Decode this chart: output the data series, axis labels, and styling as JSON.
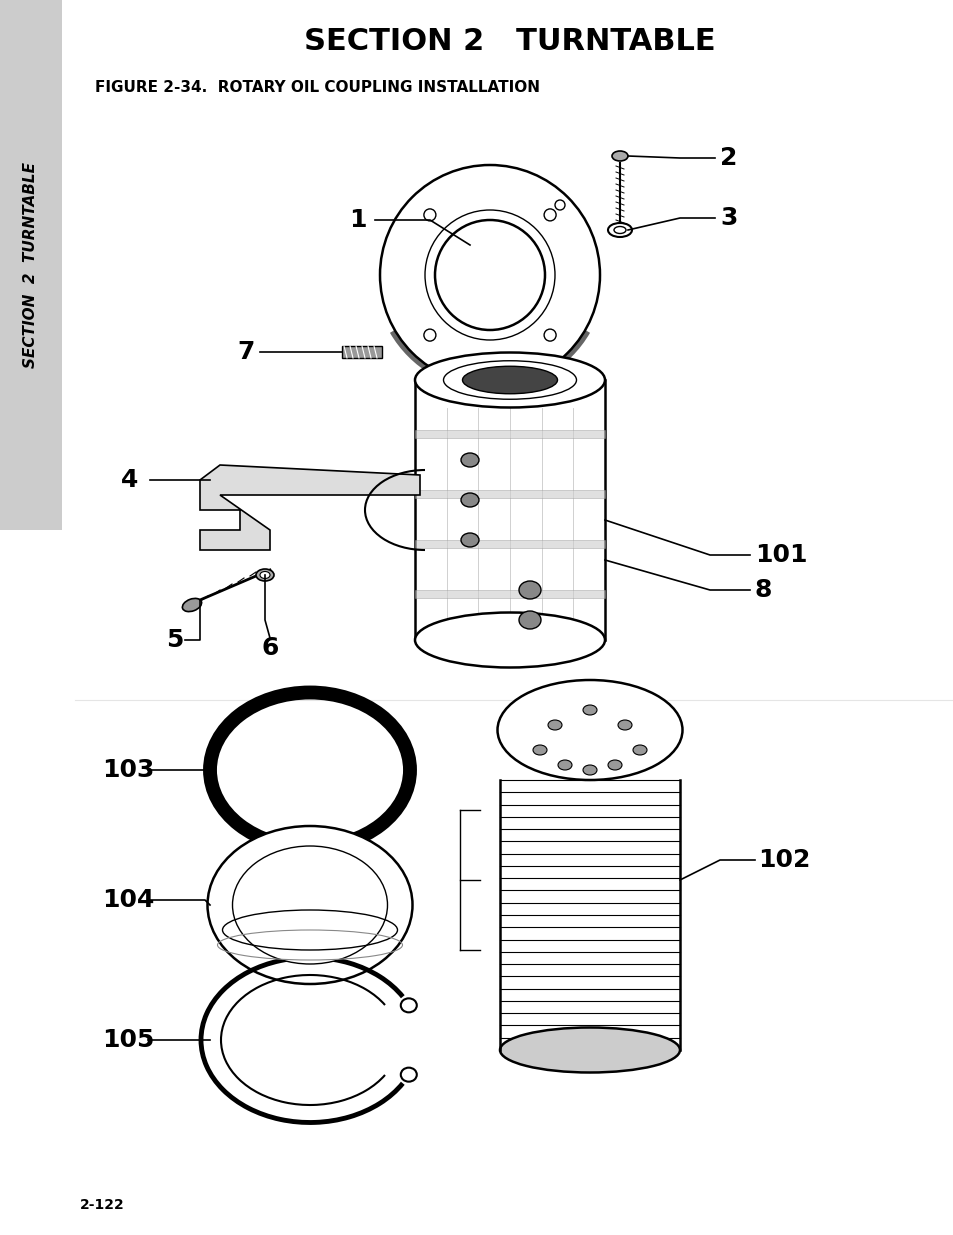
{
  "title": "SECTION 2   TURNTABLE",
  "figure_label": "FIGURE 2-34.  ROTARY OIL COUPLING INSTALLATION",
  "page_number": "2-122",
  "sidebar_color": "#cccccc",
  "background_color": "#ffffff",
  "title_fontsize": 22,
  "figure_label_fontsize": 11,
  "page_number_fontsize": 10
}
